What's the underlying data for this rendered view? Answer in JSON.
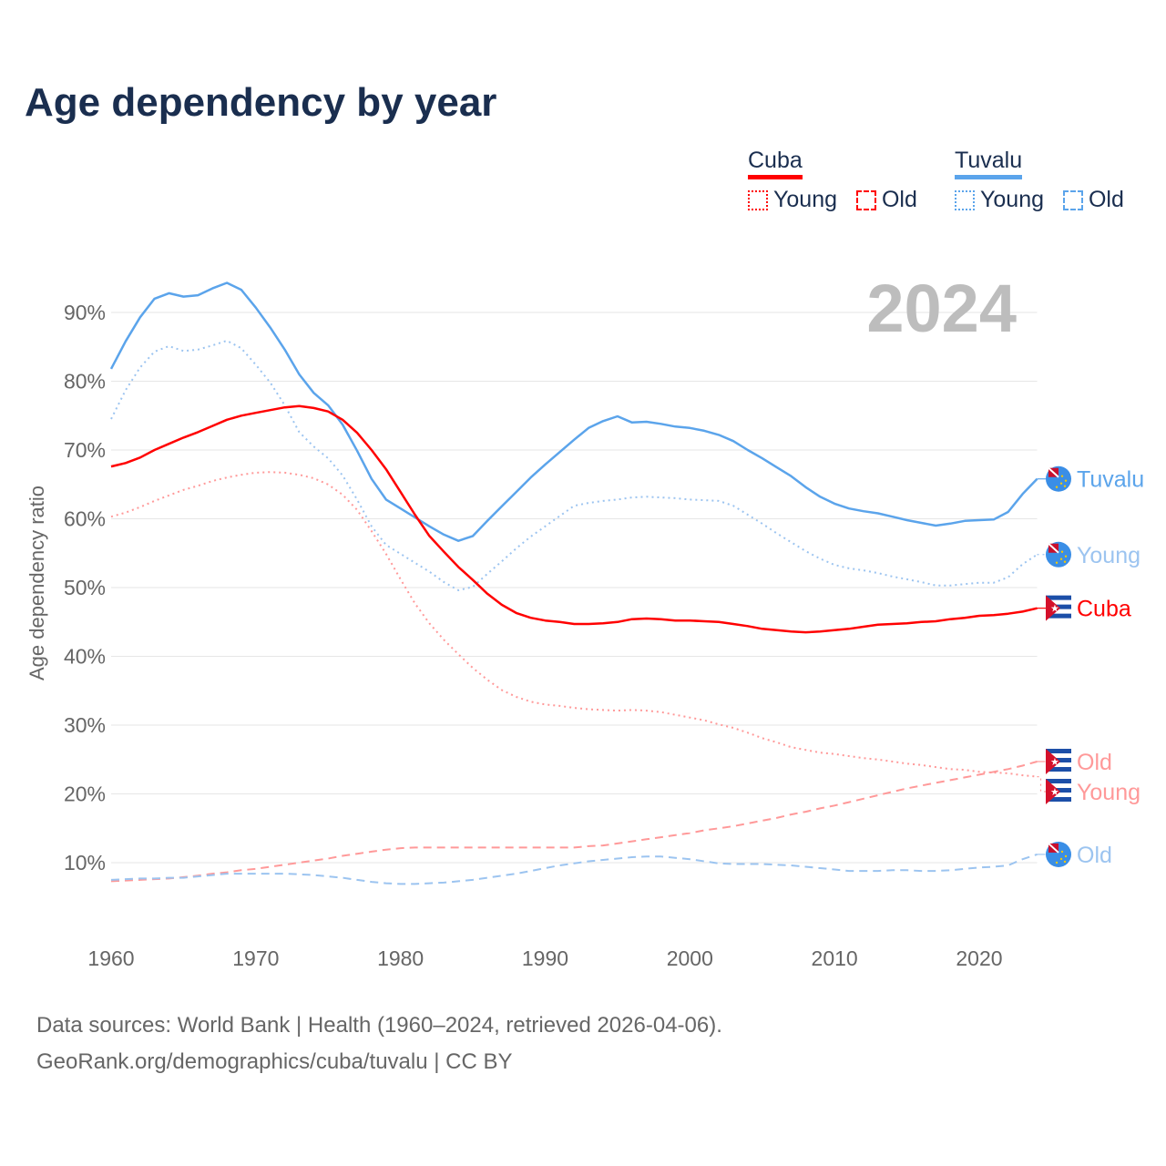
{
  "chart_data": {
    "type": "line",
    "title": "Age dependency by year",
    "xlabel": "",
    "ylabel": "Age dependency ratio",
    "year_watermark": "2024",
    "xlim": [
      1960,
      2024
    ],
    "ylim": [
      0,
      100
    ],
    "x_ticks": [
      1960,
      1970,
      1980,
      1990,
      2000,
      2010,
      2020
    ],
    "x_tick_labels": [
      "1960",
      "1970",
      "1980",
      "1990",
      "2000",
      "2010",
      "2020"
    ],
    "y_ticks": [
      10,
      20,
      30,
      40,
      50,
      60,
      70,
      80,
      90
    ],
    "y_tick_labels": [
      "10%",
      "20%",
      "30%",
      "40%",
      "50%",
      "60%",
      "70%",
      "80%",
      "90%"
    ],
    "grid": true,
    "legend": {
      "placement": "top-right",
      "groups": [
        {
          "country": "Cuba",
          "color": "#ff0000",
          "items": [
            "Young",
            "Old"
          ]
        },
        {
          "country": "Tuvalu",
          "color": "#5ba4eb",
          "items": [
            "Young",
            "Old"
          ]
        }
      ]
    },
    "x_start": 1960,
    "series": [
      {
        "name": "Tuvalu",
        "label": "Tuvalu",
        "country": "Tuvalu",
        "style": "solid",
        "color": "#5ba4eb",
        "values": [
          81.8,
          85.8,
          89.3,
          92.0,
          92.8,
          92.3,
          92.5,
          93.5,
          94.3,
          93.3,
          90.7,
          87.8,
          84.6,
          81.0,
          78.3,
          76.5,
          73.7,
          69.9,
          65.8,
          62.8,
          61.5,
          60.2,
          58.9,
          57.7,
          56.8,
          57.5,
          59.7,
          61.8,
          63.9,
          66.0,
          67.9,
          69.7,
          71.5,
          73.2,
          74.2,
          74.9,
          74.0,
          74.1,
          73.8,
          73.4,
          73.2,
          72.8,
          72.2,
          71.3,
          70.0,
          68.8,
          67.5,
          66.2,
          64.6,
          63.2,
          62.2,
          61.5,
          61.1,
          60.8,
          60.3,
          59.8,
          59.4,
          59.0,
          59.3,
          59.7,
          59.8,
          59.9,
          61.0,
          63.6,
          65.8
        ]
      },
      {
        "name": "Tuvalu Young",
        "label": "Young",
        "country": "Tuvalu",
        "style": "dotted",
        "color": "#9cc4f0",
        "values": [
          74.5,
          78.7,
          82.0,
          84.3,
          85.1,
          84.4,
          84.6,
          85.2,
          85.9,
          84.8,
          82.4,
          79.8,
          76.5,
          72.6,
          70.5,
          68.8,
          66.3,
          62.8,
          58.9,
          56.2,
          54.9,
          53.6,
          52.3,
          50.8,
          49.6,
          50.1,
          52.0,
          53.8,
          55.7,
          57.4,
          58.9,
          60.4,
          61.9,
          62.3,
          62.6,
          62.8,
          63.1,
          63.2,
          63.1,
          63.0,
          62.8,
          62.7,
          62.6,
          61.9,
          60.6,
          59.3,
          57.9,
          56.6,
          55.3,
          54.2,
          53.3,
          52.8,
          52.5,
          52.1,
          51.6,
          51.2,
          50.8,
          50.3,
          50.3,
          50.5,
          50.7,
          50.7,
          51.5,
          53.4,
          54.8
        ]
      },
      {
        "name": "Cuba",
        "label": "Cuba",
        "country": "Cuba",
        "style": "solid",
        "color": "#ff0000",
        "values": [
          67.6,
          68.1,
          68.9,
          70.0,
          70.9,
          71.8,
          72.6,
          73.5,
          74.4,
          75.0,
          75.4,
          75.8,
          76.2,
          76.4,
          76.1,
          75.6,
          74.4,
          72.5,
          70.0,
          67.2,
          63.9,
          60.6,
          57.5,
          55.2,
          53.0,
          51.1,
          49.1,
          47.5,
          46.3,
          45.6,
          45.2,
          45.0,
          44.7,
          44.7,
          44.8,
          45.0,
          45.4,
          45.5,
          45.4,
          45.2,
          45.2,
          45.1,
          45.0,
          44.7,
          44.4,
          44.0,
          43.8,
          43.6,
          43.5,
          43.6,
          43.8,
          44.0,
          44.3,
          44.6,
          44.7,
          44.8,
          45.0,
          45.1,
          45.4,
          45.6,
          45.9,
          46.0,
          46.2,
          46.5,
          47.0
        ]
      },
      {
        "name": "Cuba Old",
        "label": "Old",
        "country": "Cuba",
        "style": "dashed",
        "color": "#ff9999",
        "values": [
          7.3,
          7.4,
          7.5,
          7.6,
          7.7,
          7.9,
          8.1,
          8.4,
          8.6,
          8.9,
          9.1,
          9.4,
          9.7,
          10.0,
          10.3,
          10.6,
          11.0,
          11.3,
          11.6,
          11.9,
          12.1,
          12.2,
          12.2,
          12.2,
          12.2,
          12.2,
          12.2,
          12.2,
          12.2,
          12.2,
          12.2,
          12.2,
          12.2,
          12.4,
          12.5,
          12.8,
          13.1,
          13.4,
          13.7,
          14.0,
          14.3,
          14.7,
          15.0,
          15.3,
          15.7,
          16.1,
          16.5,
          17.0,
          17.4,
          17.9,
          18.3,
          18.8,
          19.3,
          19.8,
          20.3,
          20.8,
          21.2,
          21.6,
          22.0,
          22.4,
          22.8,
          23.2,
          23.6,
          24.1,
          24.7
        ]
      },
      {
        "name": "Cuba Young",
        "label": "Young",
        "country": "Cuba",
        "style": "dotted",
        "color": "#ff9999",
        "values": [
          60.3,
          60.9,
          61.7,
          62.6,
          63.4,
          64.2,
          64.8,
          65.5,
          66.0,
          66.4,
          66.7,
          66.8,
          66.7,
          66.4,
          65.9,
          65.0,
          63.5,
          61.3,
          58.2,
          54.9,
          51.2,
          47.7,
          44.8,
          42.4,
          40.3,
          38.3,
          36.6,
          35.1,
          34.1,
          33.4,
          33.0,
          32.8,
          32.5,
          32.3,
          32.2,
          32.1,
          32.2,
          32.1,
          31.9,
          31.5,
          31.1,
          30.7,
          30.1,
          29.6,
          28.9,
          28.1,
          27.5,
          26.8,
          26.4,
          26.0,
          25.8,
          25.5,
          25.2,
          25.0,
          24.7,
          24.4,
          24.2,
          23.9,
          23.6,
          23.5,
          23.2,
          23.1,
          23.0,
          22.7,
          22.5
        ]
      },
      {
        "name": "Tuvalu Old",
        "label": "Old",
        "country": "Tuvalu",
        "style": "dashed",
        "color": "#9cc4f0",
        "values": [
          7.5,
          7.6,
          7.7,
          7.7,
          7.8,
          7.8,
          8.0,
          8.2,
          8.4,
          8.4,
          8.4,
          8.4,
          8.4,
          8.3,
          8.2,
          8.0,
          7.8,
          7.5,
          7.2,
          7.0,
          6.9,
          6.9,
          7.0,
          7.1,
          7.3,
          7.5,
          7.8,
          8.1,
          8.4,
          8.8,
          9.2,
          9.6,
          9.9,
          10.2,
          10.4,
          10.6,
          10.8,
          10.9,
          10.9,
          10.7,
          10.5,
          10.2,
          9.9,
          9.8,
          9.8,
          9.8,
          9.7,
          9.6,
          9.4,
          9.2,
          9.0,
          8.8,
          8.8,
          8.8,
          8.9,
          8.9,
          8.8,
          8.8,
          8.9,
          9.1,
          9.3,
          9.4,
          9.6,
          10.5,
          11.2
        ]
      }
    ],
    "footer": {
      "line1": "Data sources: World Bank | Health (1960–2024, retrieved 2026-04-06).",
      "line2": "GeoRank.org/demographics/cuba/tuvalu | CC BY"
    }
  }
}
